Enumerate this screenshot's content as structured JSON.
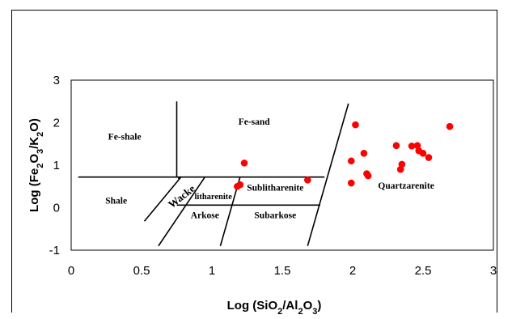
{
  "chart_data": {
    "type": "scatter",
    "title": "",
    "xlabel": "Log (SiO2/Al2O3)",
    "ylabel": "Log (Fe2O3/K2O)",
    "xlim": [
      0,
      3
    ],
    "ylim": [
      -1,
      3
    ],
    "x_ticks": [
      "0",
      "0.5",
      "1",
      "1.5",
      "2",
      "2.5",
      "3"
    ],
    "y_ticks": [
      "-1",
      "0",
      "1",
      "2",
      "3"
    ],
    "grid": false,
    "legend": "none",
    "series": [
      {
        "color": "#ff0000",
        "points": [
          [
            1.18,
            0.5
          ],
          [
            1.2,
            0.54
          ],
          [
            1.23,
            1.05
          ],
          [
            1.68,
            0.65
          ],
          [
            1.99,
            1.1
          ],
          [
            1.99,
            0.58
          ],
          [
            2.02,
            1.95
          ],
          [
            2.08,
            1.28
          ],
          [
            2.1,
            0.8
          ],
          [
            2.11,
            0.75
          ],
          [
            2.31,
            1.46
          ],
          [
            2.34,
            0.9
          ],
          [
            2.35,
            1.02
          ],
          [
            2.42,
            1.45
          ],
          [
            2.46,
            1.46
          ],
          [
            2.47,
            1.34
          ],
          [
            2.5,
            1.28
          ],
          [
            2.54,
            1.18
          ],
          [
            2.69,
            1.91
          ]
        ]
      }
    ],
    "regions": [
      {
        "label": "Fe-shale",
        "x": 0.38,
        "y": 1.6
      },
      {
        "label": "Fe-sand",
        "x": 1.3,
        "y": 1.95
      },
      {
        "label": "Shale",
        "x": 0.32,
        "y": 0.1
      },
      {
        "label": "Wacke",
        "x": 0.8,
        "y": 0.2
      },
      {
        "label": "litharenite",
        "x": 1.01,
        "y": 0.2
      },
      {
        "label": "Arkose",
        "x": 0.95,
        "y": -0.25
      },
      {
        "label": "Sublitharenite",
        "x": 1.45,
        "y": 0.4
      },
      {
        "label": "Subarkose",
        "x": 1.45,
        "y": -0.25
      },
      {
        "label": "Quartzarenite",
        "x": 2.38,
        "y": 0.45
      }
    ],
    "boundaries": [
      [
        [
          0.05,
          0.72
        ],
        [
          1.8,
          0.72
        ]
      ],
      [
        [
          0.75,
          2.5
        ],
        [
          0.75,
          0.72
        ]
      ],
      [
        [
          0.52,
          -0.32
        ],
        [
          0.78,
          0.72
        ]
      ],
      [
        [
          0.62,
          -0.9
        ],
        [
          0.95,
          0.72
        ]
      ],
      [
        [
          1.06,
          -0.9
        ],
        [
          1.2,
          0.72
        ]
      ],
      [
        [
          0.76,
          0.68
        ],
        [
          0.78,
          0.72
        ]
      ],
      [
        [
          0.75,
          0.06
        ],
        [
          1.77,
          0.06
        ]
      ],
      [
        [
          1.68,
          -0.9
        ],
        [
          1.97,
          2.45
        ]
      ]
    ]
  }
}
